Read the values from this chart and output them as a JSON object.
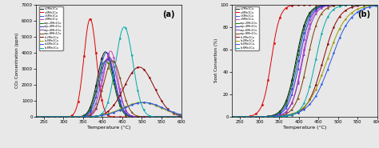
{
  "series_labels": [
    "r-2Mn1Cu",
    "r-4Mn1Cu",
    "r-6Mn1Cu",
    "r-8Mn1Cu",
    "cop-2Mn1Cu",
    "cop-4Mn1Cu",
    "cop-6Mn1Cu",
    "cop-8Mn1Cu",
    "h-2Mn1Cu",
    "h-4Mn1Cu",
    "h-6Mn1Cu",
    "h-8Mn1Cu"
  ],
  "colors": [
    "#111111",
    "#e00000",
    "#3355cc",
    "#cc44cc",
    "#117711",
    "#3333dd",
    "#8833bb",
    "#7a3a00",
    "#880000",
    "#999900",
    "#2255ee",
    "#00aaaa"
  ],
  "markers": [
    "s",
    "s",
    "s",
    "s",
    "^",
    "^",
    "^",
    "^",
    "o",
    "o",
    "o",
    "o"
  ],
  "tpo_peaks": [
    407,
    368,
    410,
    420,
    408,
    412,
    417,
    425,
    493,
    500,
    505,
    455
  ],
  "tpo_heights": [
    4050,
    6100,
    4000,
    4100,
    3500,
    3600,
    3700,
    3500,
    3100,
    900,
    900,
    5600
  ],
  "tpo_widths": [
    20,
    16,
    20,
    18,
    20,
    20,
    20,
    22,
    38,
    50,
    50,
    22
  ],
  "soot_t50": [
    393,
    330,
    398,
    408,
    395,
    402,
    410,
    422,
    462,
    472,
    482,
    443
  ],
  "soot_k": [
    14,
    11,
    14,
    13,
    14,
    14,
    14,
    15,
    20,
    25,
    26,
    15
  ],
  "xlim": [
    230,
    600
  ],
  "ylim_tpo": [
    0,
    7000
  ],
  "ylim_soot": [
    0,
    100
  ],
  "xlabel": "Temperature (°C)",
  "ylabel_tpo": "CO₂ Concentration (ppm)",
  "ylabel_soot": "Soot Convertion (%)",
  "label_a": "(a)",
  "label_b": "(b)",
  "yticks_tpo": [
    0,
    1000,
    2000,
    3000,
    4000,
    5000,
    6000,
    7000
  ],
  "yticks_soot": [
    0,
    20,
    40,
    60,
    80,
    100
  ],
  "xticks": [
    250,
    300,
    350,
    400,
    450,
    500,
    550,
    600
  ],
  "bg_color": "#e8e8e8"
}
